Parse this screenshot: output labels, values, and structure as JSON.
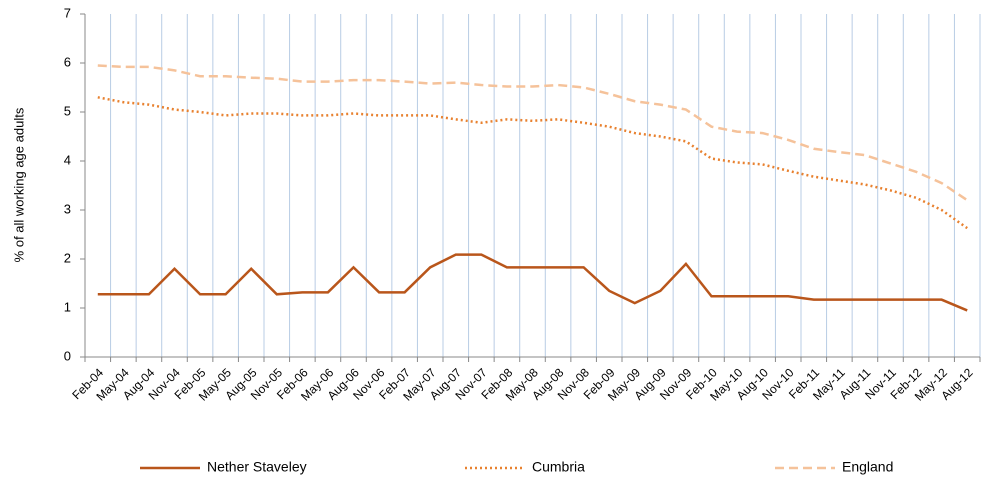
{
  "chart_data": {
    "type": "line",
    "y_label": "% of all working age adults",
    "categories": [
      "Feb-04",
      "May-04",
      "Aug-04",
      "Nov-04",
      "Feb-05",
      "May-05",
      "Aug-05",
      "Nov-05",
      "Feb-06",
      "May-06",
      "Aug-06",
      "Nov-06",
      "Feb-07",
      "May-07",
      "Aug-07",
      "Nov-07",
      "Feb-08",
      "May-08",
      "Aug-08",
      "Nov-08",
      "Feb-09",
      "May-09",
      "Aug-09",
      "Nov-09",
      "Feb-10",
      "May-10",
      "Aug-10",
      "Nov-10",
      "Feb-11",
      "May-11",
      "Aug-11",
      "Nov-11",
      "Feb-12",
      "May-12",
      "Aug-12"
    ],
    "series": [
      {
        "name": "Nether Staveley",
        "color": "#b9561b",
        "style": "solid",
        "values": [
          1.28,
          1.28,
          1.28,
          1.8,
          1.28,
          1.28,
          1.8,
          1.28,
          1.32,
          1.32,
          1.83,
          1.32,
          1.32,
          1.83,
          2.09,
          2.09,
          1.83,
          1.83,
          1.83,
          1.83,
          1.35,
          1.1,
          1.35,
          1.9,
          1.24,
          1.24,
          1.24,
          1.24,
          1.17,
          1.17,
          1.17,
          1.17,
          1.17,
          1.17,
          0.95
        ]
      },
      {
        "name": "Cumbria",
        "color": "#e8812f",
        "style": "dotted",
        "values": [
          5.3,
          5.2,
          5.15,
          5.05,
          5.0,
          4.93,
          4.97,
          4.97,
          4.93,
          4.93,
          4.97,
          4.93,
          4.93,
          4.93,
          4.85,
          4.78,
          4.85,
          4.82,
          4.85,
          4.78,
          4.7,
          4.57,
          4.5,
          4.4,
          4.05,
          3.97,
          3.93,
          3.8,
          3.68,
          3.6,
          3.52,
          3.4,
          3.25,
          3.0,
          2.63
        ]
      },
      {
        "name": "England",
        "color": "#f5c29a",
        "style": "dashed",
        "values": [
          5.95,
          5.92,
          5.92,
          5.85,
          5.73,
          5.73,
          5.7,
          5.68,
          5.62,
          5.62,
          5.65,
          5.65,
          5.62,
          5.58,
          5.6,
          5.55,
          5.52,
          5.52,
          5.55,
          5.5,
          5.37,
          5.22,
          5.15,
          5.05,
          4.7,
          4.6,
          4.57,
          4.43,
          4.25,
          4.18,
          4.12,
          3.95,
          3.78,
          3.55,
          3.2
        ]
      }
    ],
    "ylim": [
      0,
      7
    ],
    "yticks": [
      0,
      1,
      2,
      3,
      4,
      5,
      6,
      7
    ],
    "x_grid": true,
    "grid_color": "#b8cce4",
    "legend": "bottom"
  }
}
